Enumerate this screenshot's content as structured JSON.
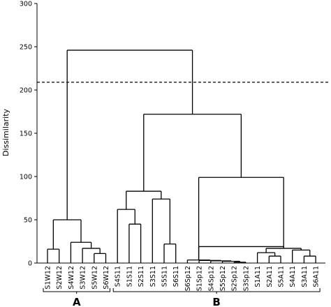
{
  "chart_data": {
    "type": "dendrogram",
    "ylabel": "Dissimilarity",
    "ylim": [
      0,
      300
    ],
    "yticks": [
      0,
      50,
      100,
      150,
      200,
      250,
      300
    ],
    "threshold": 209,
    "leaves": [
      "S1W12",
      "S2W12",
      "S4W12",
      "S3W12",
      "S5W12",
      "S6W12",
      "S4S11",
      "S1S11",
      "S2S11",
      "S3S11",
      "S5S11",
      "S6S11",
      "S6Sp12",
      "S1Sp12",
      "S4Sp12",
      "S5Sp12",
      "S2Sp12",
      "S3Sp12",
      "S1A11",
      "S2A11",
      "S5A11",
      "S4A11",
      "S3A11",
      "S6A11"
    ],
    "merges": [
      {
        "a": "S1W12",
        "b": "S2W12",
        "height": 16
      },
      {
        "a": "S5W12",
        "b": "S6W12",
        "height": 11
      },
      {
        "a": "S3W12",
        "b": "S5W12|S6W12",
        "height": 17
      },
      {
        "a": "S4W12",
        "b": "S3W12|S5W12|S6W12",
        "height": 24
      },
      {
        "a": "S1W12|S2W12",
        "b": "S4W12|S3W12|S5W12|S6W12",
        "height": 50
      },
      {
        "a": "S1S11",
        "b": "S2S11",
        "height": 45
      },
      {
        "a": "S4S11",
        "b": "S1S11|S2S11",
        "height": 62
      },
      {
        "a": "S5S11",
        "b": "S6S11",
        "height": 22
      },
      {
        "a": "S3S11",
        "b": "S5S11|S6S11",
        "height": 74
      },
      {
        "a": "S4S11|S1S11|S2S11",
        "b": "S3S11|S5S11|S6S11",
        "height": 83
      },
      {
        "a": "S2Sp12",
        "b": "S3Sp12",
        "height": 1
      },
      {
        "a": "S5Sp12",
        "b": "S2Sp12|S3Sp12",
        "height": 2
      },
      {
        "a": "S4Sp12",
        "b": "S5Sp12|S2Sp12|S3Sp12",
        "height": 2.5
      },
      {
        "a": "S1Sp12",
        "b": "S4Sp12|S5Sp12|S2Sp12|S3Sp12",
        "height": 3
      },
      {
        "a": "S6Sp12",
        "b": "S1Sp12|S4Sp12|S5Sp12|S2Sp12|S3Sp12",
        "height": 3.5
      },
      {
        "a": "S2A11",
        "b": "S5A11",
        "height": 8
      },
      {
        "a": "S1A11",
        "b": "S2A11|S5A11",
        "height": 12
      },
      {
        "a": "S3A11",
        "b": "S6A11",
        "height": 8
      },
      {
        "a": "S4A11",
        "b": "S3A11|S6A11",
        "height": 15
      },
      {
        "a": "S1A11|S2A11|S5A11",
        "b": "S4A11|S3A11|S6A11",
        "height": 17
      },
      {
        "a": "Sp12",
        "b": "A11",
        "height": 19
      },
      {
        "a": "S11",
        "b": "Sp12+A11",
        "height": 99
      },
      {
        "a": "S11+Sp12+A11",
        "b": "",
        "height": 172
      },
      {
        "a": "A",
        "b": "B",
        "height": 246
      }
    ],
    "groups": [
      {
        "label": "A",
        "from": 0,
        "to": 5
      },
      {
        "label": "B",
        "from": 6,
        "to": 23
      }
    ]
  }
}
